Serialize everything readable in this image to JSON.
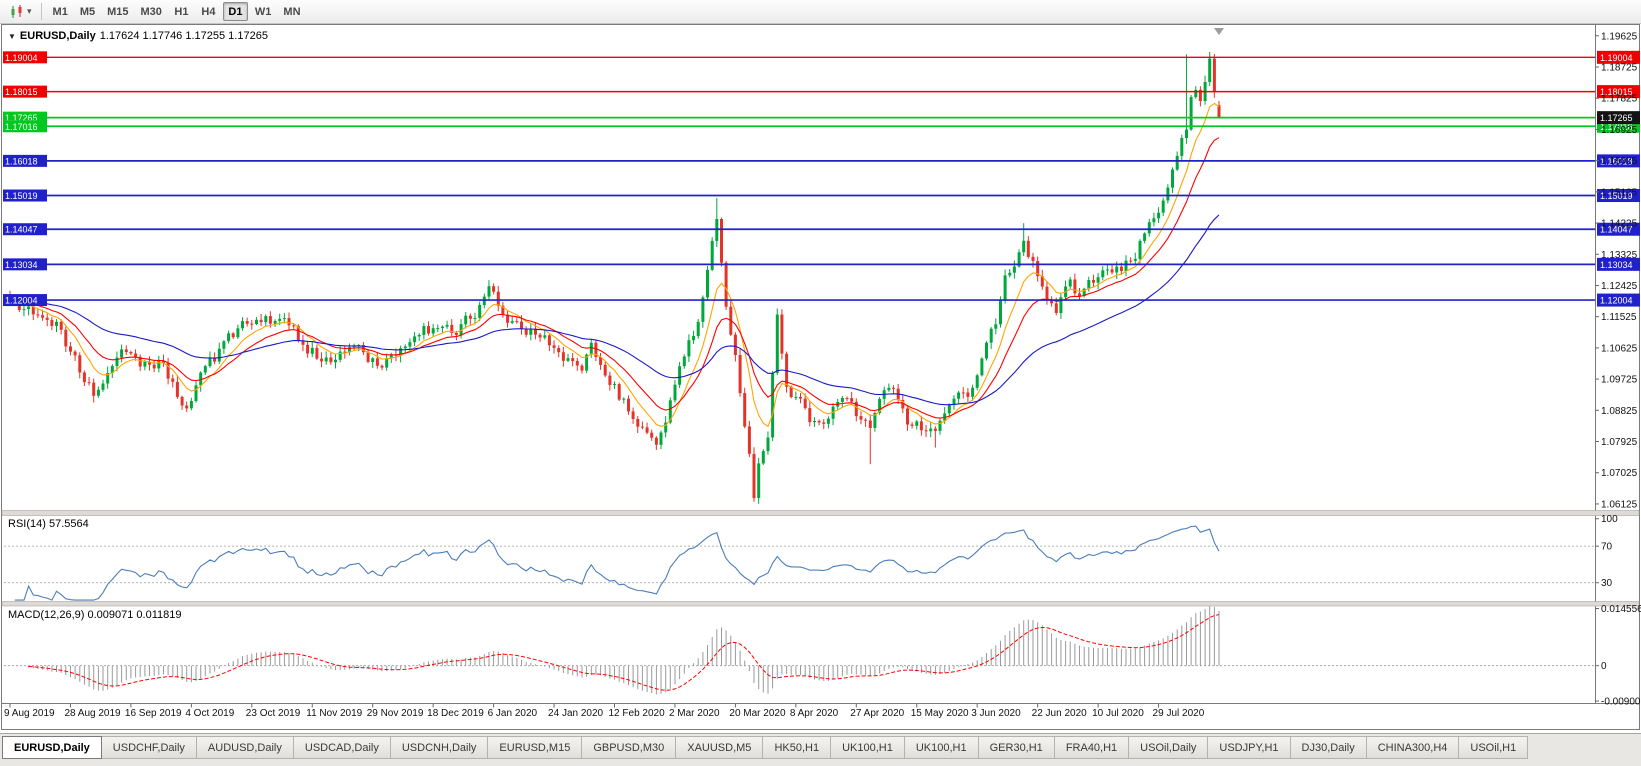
{
  "toolbar": {
    "timeframes": [
      "M1",
      "M5",
      "M15",
      "M30",
      "H1",
      "H4",
      "D1",
      "W1",
      "MN"
    ],
    "active_timeframe": "D1",
    "dropdown_glyph": "▾"
  },
  "tabs": {
    "active_index": 0,
    "items": [
      "EURUSD,Daily",
      "USDCHF,Daily",
      "AUDUSD,Daily",
      "USDCAD,Daily",
      "USDCNH,Daily",
      "EURUSD,M15",
      "GBPUSD,M30",
      "XAUUSD,M5",
      "HK50,H1",
      "UK100,H1",
      "UK100,H1",
      "GER30,H1",
      "FRA40,H1",
      "USOil,Daily",
      "USDJPY,H1",
      "DJ30,Daily",
      "CHINA300,H4",
      "USOil,H1"
    ]
  },
  "colors": {
    "bull": "#00A83C",
    "bear": "#E3342A",
    "line_red": "#F00000",
    "line_green": "#00C81E",
    "line_blue": "#2121CC",
    "bid_tag": "#141414",
    "axis_text": "#111111",
    "splitter": "#DEDBD6"
  },
  "chart_data": {
    "type": "candlestick",
    "symbol": "EURUSD",
    "timeframe": "Daily",
    "header": {
      "symbol": "EURUSD,Daily",
      "ohlc": "1.17624 1.17746 1.17255 1.17265"
    },
    "last_candle": {
      "o": 1.17624,
      "h": 1.17746,
      "l": 1.17255,
      "c": 1.17265
    },
    "first_open": 1.1212,
    "bars": 261,
    "bar_spacing": 4.65,
    "price_range": [
      1.0595,
      1.1985
    ],
    "y_axis_labels": [
      "1.19625",
      "1.18725",
      "1.17825",
      "1.16925",
      "1.16025",
      "1.15125",
      "1.14225",
      "1.13325",
      "1.12425",
      "1.11525",
      "1.10625",
      "1.09725",
      "1.08825",
      "1.07925",
      "1.07025",
      "1.06125"
    ],
    "x_axis_labels": [
      "9 Aug 2019",
      "28 Aug 2019",
      "16 Sep 2019",
      "4 Oct 2019",
      "23 Oct 2019",
      "11 Nov 2019",
      "29 Nov 2019",
      "18 Dec 2019",
      "6 Jan 2020",
      "24 Jan 2020",
      "12 Feb 2020",
      "2 Mar 2020",
      "20 Mar 2020",
      "8 Apr 2020",
      "27 Apr 2020",
      "15 May 2020",
      "3 Jun 2020",
      "22 Jun 2020",
      "10 Jul 2020",
      "29 Jul 2020"
    ],
    "x_label_bar_step": 13,
    "horizontal_lines": [
      {
        "price": 1.19004,
        "label": "1.19004",
        "color": "red"
      },
      {
        "price": 1.18015,
        "label": "1.18015",
        "color": "red"
      },
      {
        "price": 1.17265,
        "label": "1.17265",
        "color": "green",
        "right_tag": false
      },
      {
        "price": 1.17016,
        "label": "1.17016",
        "color": "green"
      },
      {
        "price": 1.16018,
        "label": "1.16018",
        "color": "blue"
      },
      {
        "price": 1.15019,
        "label": "1.15019",
        "color": "blue"
      },
      {
        "price": 1.14047,
        "label": "1.14047",
        "color": "blue"
      },
      {
        "price": 1.13034,
        "label": "1.13034",
        "color": "blue"
      },
      {
        "price": 1.12004,
        "label": "1.12004",
        "color": "blue"
      }
    ],
    "bid": {
      "price": 1.17265,
      "label": "1.17265"
    },
    "close_path": [
      [
        0,
        1.12
      ],
      [
        4,
        1.1185
      ],
      [
        10,
        1.1145
      ],
      [
        15,
        1.0995
      ],
      [
        18,
        1.093
      ],
      [
        22,
        1.104
      ],
      [
        25,
        1.1074
      ],
      [
        29,
        1.1012
      ],
      [
        33,
        1.1022
      ],
      [
        36,
        1.094
      ],
      [
        38,
        1.0905
      ],
      [
        40,
        1.0968
      ],
      [
        45,
        1.1042
      ],
      [
        50,
        1.114
      ],
      [
        54,
        1.1126
      ],
      [
        59,
        1.1152
      ],
      [
        63,
        1.1076
      ],
      [
        69,
        1.1016
      ],
      [
        74,
        1.1058
      ],
      [
        80,
        1.1018
      ],
      [
        85,
        1.1082
      ],
      [
        89,
        1.113
      ],
      [
        93,
        1.1112
      ],
      [
        96,
        1.1088
      ],
      [
        103,
        1.1213
      ],
      [
        107,
        1.1162
      ],
      [
        110,
        1.1124
      ],
      [
        115,
        1.1102
      ],
      [
        120,
        1.1028
      ],
      [
        123,
        1.1006
      ],
      [
        125,
        1.1094
      ],
      [
        128,
        1.0992
      ],
      [
        130,
        1.0946
      ],
      [
        134,
        1.0868
      ],
      [
        139,
        1.079
      ],
      [
        141,
        1.0858
      ],
      [
        145,
        1.1027
      ],
      [
        148,
        1.1135
      ],
      [
        150,
        1.1285
      ],
      [
        152,
        1.145
      ],
      [
        154,
        1.1184
      ],
      [
        156,
        1.1052
      ],
      [
        158,
        1.086
      ],
      [
        160,
        1.0645
      ],
      [
        161,
        1.073
      ],
      [
        163,
        1.0792
      ],
      [
        165,
        1.1147
      ],
      [
        167,
        1.0952
      ],
      [
        169,
        1.0908
      ],
      [
        172,
        1.0862
      ],
      [
        175,
        1.0872
      ],
      [
        178,
        1.0912
      ],
      [
        181,
        1.0882
      ],
      [
        185,
        1.0824
      ],
      [
        189,
        1.0955
      ],
      [
        191,
        1.0902
      ],
      [
        194,
        1.0836
      ],
      [
        197,
        1.0816
      ],
      [
        199,
        1.0802
      ],
      [
        202,
        1.0892
      ],
      [
        204,
        1.095
      ],
      [
        206,
        1.0922
      ],
      [
        208,
        1.0984
      ],
      [
        210,
        1.1101
      ],
      [
        212,
        1.1136
      ],
      [
        214,
        1.1252
      ],
      [
        216,
        1.1292
      ],
      [
        218,
        1.1374
      ],
      [
        220,
        1.1302
      ],
      [
        222,
        1.1258
      ],
      [
        225,
        1.1178
      ],
      [
        228,
        1.1258
      ],
      [
        230,
        1.122
      ],
      [
        232,
        1.1235
      ],
      [
        234,
        1.1242
      ],
      [
        237,
        1.1282
      ],
      [
        240,
        1.1302
      ],
      [
        242,
        1.1332
      ],
      [
        244,
        1.1402
      ],
      [
        247,
        1.1448
      ],
      [
        249,
        1.1516
      ],
      [
        251,
        1.1598
      ],
      [
        253,
        1.1702
      ],
      [
        254,
        1.1772
      ],
      [
        255,
        1.178
      ],
      [
        256,
        1.1764
      ],
      [
        257,
        1.1832
      ],
      [
        258,
        1.1892
      ],
      [
        259,
        1.1802
      ],
      [
        260,
        1.17265
      ]
    ],
    "extremes": [
      {
        "bar": 18,
        "low": 1.0905
      },
      {
        "bar": 38,
        "low": 1.0879
      },
      {
        "bar": 139,
        "low": 1.0778
      },
      {
        "bar": 152,
        "high": 1.1495
      },
      {
        "bar": 160,
        "low": 1.0636
      },
      {
        "bar": 185,
        "low": 1.0727
      },
      {
        "bar": 199,
        "low": 1.0775
      },
      {
        "bar": 218,
        "high": 1.1422
      },
      {
        "bar": 253,
        "high": 1.1909
      },
      {
        "bar": 258,
        "high": 1.1916
      }
    ],
    "moving_averages": [
      {
        "name": "ma-fast",
        "period": 8,
        "color": "#FFA500"
      },
      {
        "name": "ma-mid",
        "period": 16,
        "color": "#FF0000"
      },
      {
        "name": "ma-slow",
        "period": 45,
        "color": "#1A1AC8"
      }
    ],
    "rsi": {
      "label": "RSI(14) 57.5564",
      "period": 14,
      "value": "57.5564",
      "color": "#4A7EBB",
      "range": [
        10,
        103
      ],
      "levels": [
        {
          "value": 100,
          "label": "100"
        },
        {
          "value": 70,
          "label": "70"
        },
        {
          "value": 30,
          "label": "30"
        }
      ]
    },
    "macd": {
      "label": "MACD(12,26,9) 0.009071 0.011819",
      "fast": 12,
      "slow": 26,
      "signal": 9,
      "value_main": "0.009071",
      "value_signal": "0.011819",
      "hist_color": "#9A9A9A",
      "signal_color": "#FF0000",
      "range": [
        -0.0095,
        0.0152
      ],
      "axis": [
        {
          "value": 0.014556,
          "label": "0.014556"
        },
        {
          "value": 0,
          "label": "0"
        },
        {
          "value": -0.009001,
          "label": "-0.009001"
        }
      ]
    }
  }
}
